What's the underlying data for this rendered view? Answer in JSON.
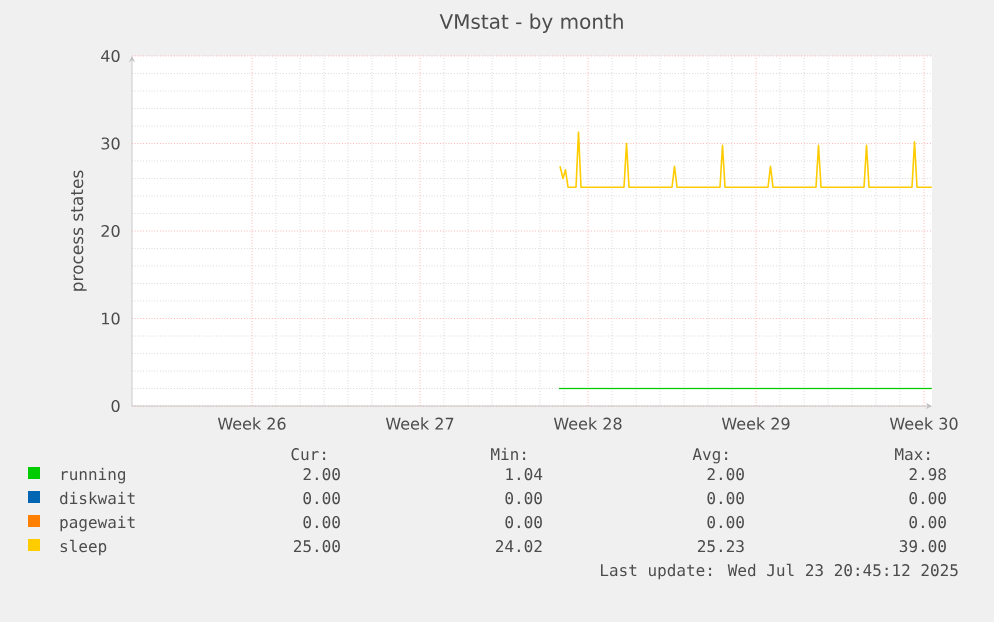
{
  "chart_data": {
    "type": "line",
    "title": "VMstat - by month",
    "ylabel": "process states",
    "xlim": [
      "2025-06-20T13:00",
      "2025-07-23T21:00"
    ],
    "ylim": [
      0,
      40
    ],
    "xticks": [
      {
        "value": "2025-06-25T13:00",
        "label": "Week 26"
      },
      {
        "value": "2025-07-02T13:00",
        "label": "Week 27"
      },
      {
        "value": "2025-07-09T13:00",
        "label": "Week 28"
      },
      {
        "value": "2025-07-16T13:00",
        "label": "Week 29"
      },
      {
        "value": "2025-07-23T13:00",
        "label": "Week 30"
      }
    ],
    "yticks": [
      0,
      10,
      20,
      30,
      40
    ],
    "grid": true,
    "legend": "bottom",
    "marker": "none",
    "line_style": "solid",
    "series": [
      {
        "name": "running",
        "color": "#00cc00",
        "x": [
          "2025-07-08T08:00",
          "2025-07-23T20:45"
        ],
        "values": [
          2,
          2
        ]
      },
      {
        "name": "diskwait",
        "color": "#0066b3"
      },
      {
        "name": "pagewait",
        "color": "#ff8000"
      },
      {
        "name": "sleep",
        "color": "#ffcc00",
        "x": [
          "2025-07-08T09:00",
          "2025-07-08T12:00",
          "2025-07-08T14:30",
          "2025-07-08T17:00",
          "2025-07-09T01:00",
          "2025-07-09T03:30",
          "2025-07-09T06:00",
          "2025-07-11T01:00",
          "2025-07-11T03:30",
          "2025-07-11T06:00",
          "2025-07-13T01:00",
          "2025-07-13T03:30",
          "2025-07-13T06:00",
          "2025-07-15T01:00",
          "2025-07-15T03:30",
          "2025-07-15T06:00",
          "2025-07-17T01:00",
          "2025-07-17T03:30",
          "2025-07-17T06:00",
          "2025-07-19T01:00",
          "2025-07-19T03:30",
          "2025-07-19T06:00",
          "2025-07-21T01:00",
          "2025-07-21T03:30",
          "2025-07-21T06:00",
          "2025-07-23T01:00",
          "2025-07-23T03:30",
          "2025-07-23T06:00",
          "2025-07-23T20:45"
        ],
        "values": [
          27.4,
          26,
          27,
          25,
          25,
          31.3,
          25,
          25,
          30,
          25,
          25,
          27.4,
          25,
          25,
          29.8,
          25,
          25,
          27.4,
          25,
          25,
          29.8,
          25,
          25,
          29.8,
          25,
          25,
          30.2,
          25,
          25
        ]
      }
    ],
    "annotations": [
      "Cur:",
      "Min:",
      "Avg:",
      "Max:",
      "2.00",
      "1.04",
      "2.00",
      "2.98",
      "0.00",
      "0.00",
      "0.00",
      "0.00",
      "0.00",
      "0.00",
      "0.00",
      "0.00",
      "25.00",
      "24.02",
      "25.23",
      "39.00",
      "Last update: Wed Jul 23 20:45:12 2025"
    ]
  }
}
